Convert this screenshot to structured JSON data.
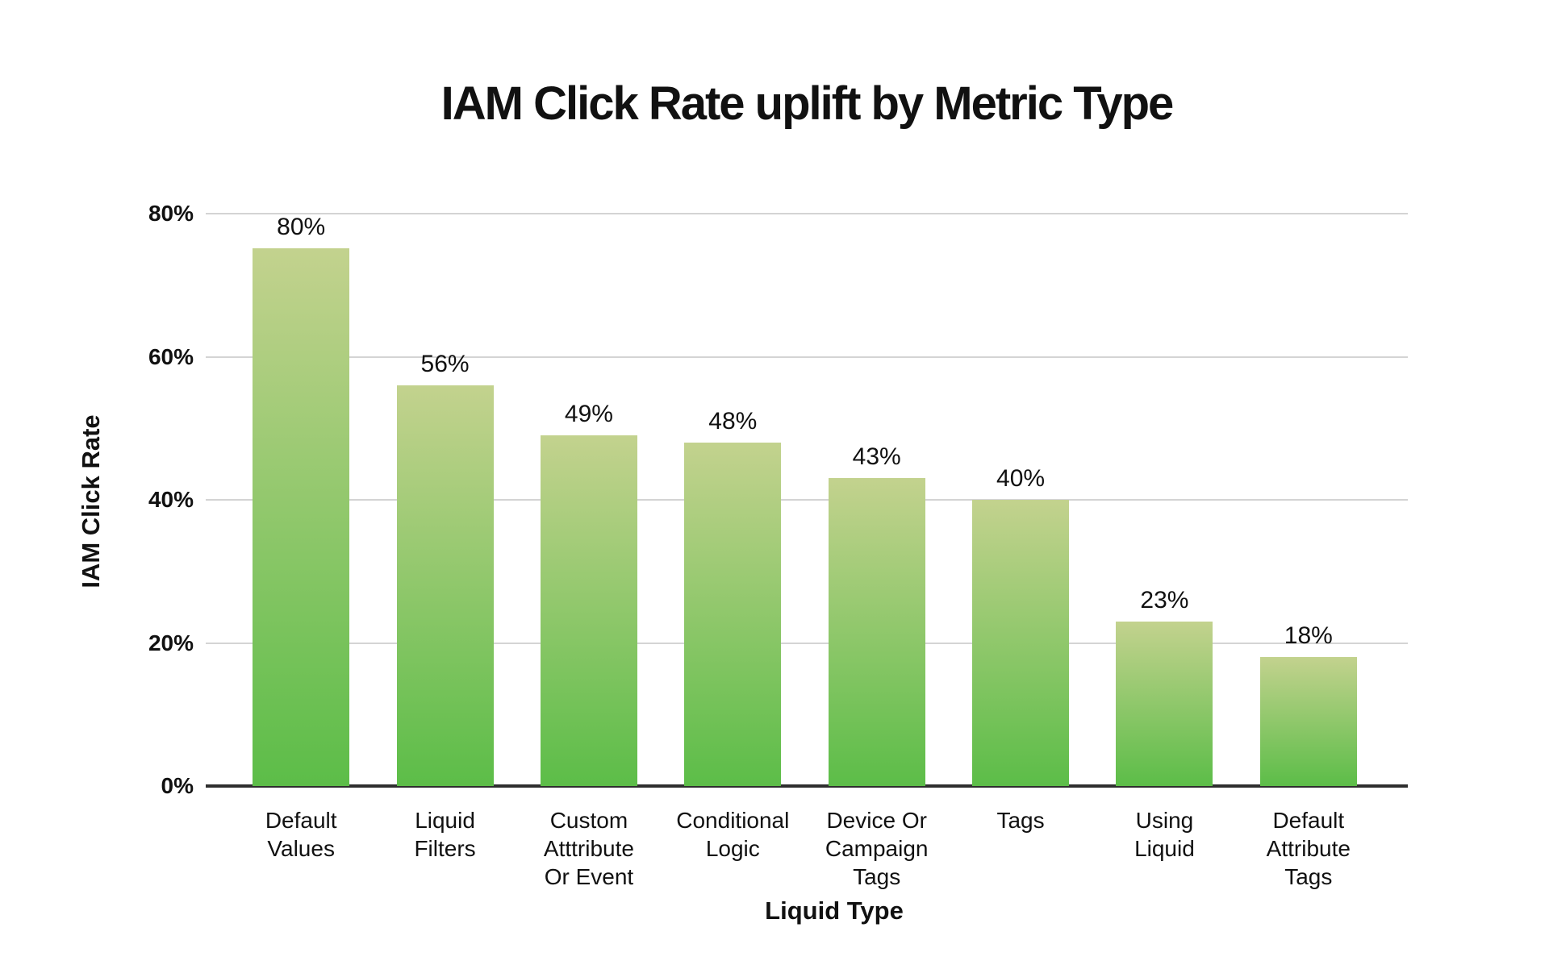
{
  "chart_data": {
    "type": "bar",
    "title": "IAM Click Rate uplift by Metric Type",
    "xlabel": "Liquid Type",
    "ylabel": "IAM Click Rate",
    "categories": [
      "Default Values",
      "Liquid Filters",
      "Custom Atttribute Or Event",
      "Conditional Logic",
      "Device Or Campaign Tags",
      "Tags",
      "Using Liquid",
      "Default Attribute Tags"
    ],
    "categories_wrapped": [
      "Default\nValues",
      "Liquid\nFilters",
      "Custom\nAtttribute\nOr Event",
      "Conditional\nLogic",
      "Device Or\nCampaign\nTags",
      "Tags",
      "Using\nLiquid",
      "Default\nAttribute\nTags"
    ],
    "values": [
      80,
      56,
      49,
      48,
      43,
      40,
      23,
      18
    ],
    "value_labels": [
      "80%",
      "56%",
      "49%",
      "48%",
      "43%",
      "40%",
      "23%",
      "18%"
    ],
    "ylim": [
      0,
      80
    ],
    "yticks": [
      0,
      20,
      40,
      60,
      80
    ],
    "ytick_labels": [
      "0%",
      "20%",
      "40%",
      "60%",
      "80%"
    ],
    "grid": "horizontal",
    "legend": "none",
    "colors": {
      "bar_gradient_top": "#c3d28e",
      "bar_gradient_bottom": "#5cbd48",
      "gridline": "#d4d4d4",
      "axis_line": "#2e2e2e",
      "text": "#111111",
      "background": "#ffffff"
    }
  }
}
